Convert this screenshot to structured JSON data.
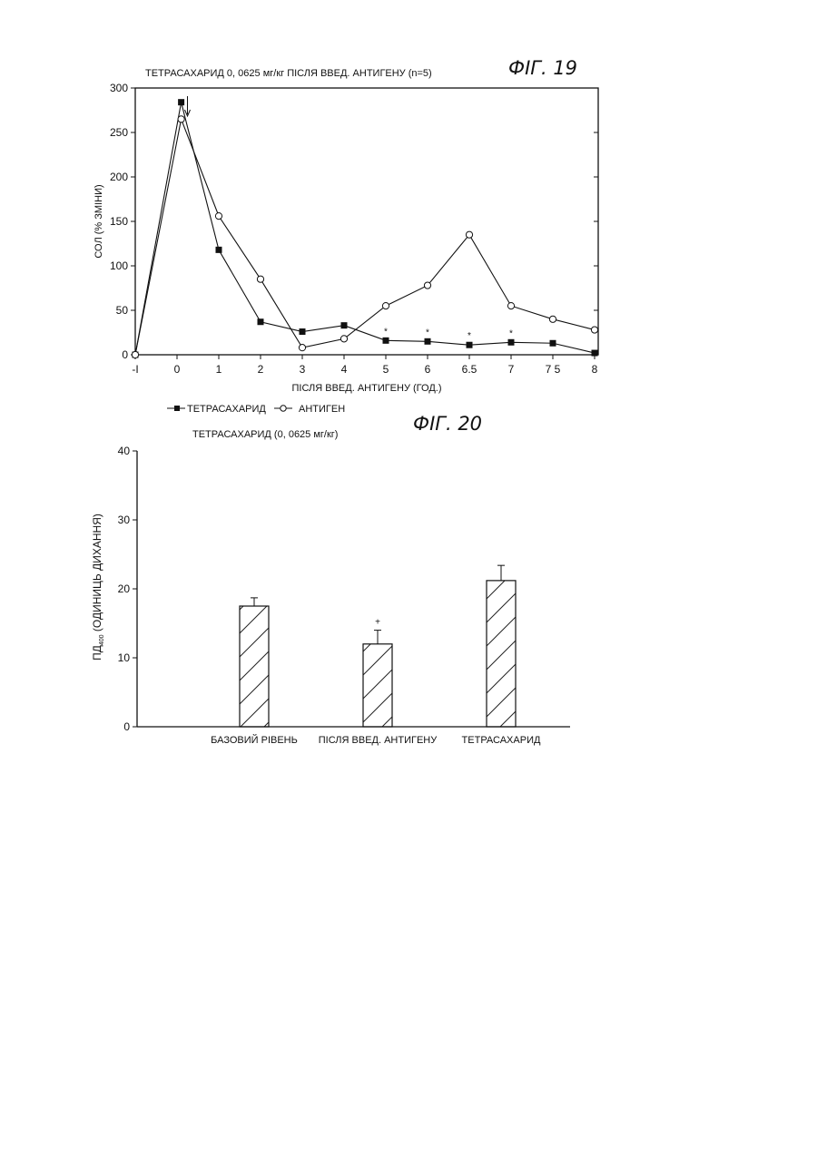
{
  "figures": [
    {
      "fig_label": "ФІГ. 19",
      "chart_data": {
        "type": "line",
        "title": "ТЕТРАСАХАРИД 0, 0625 мг/кг ПІСЛЯ ВВЕД. АНТИГЕНУ (n=5)",
        "xlabel": "ПІСЛЯ ВВЕД. АНТИГЕНУ (ГОД.)",
        "ylabel": "СОЛ (% ЗМІНИ)",
        "xlim": [
          -1,
          8
        ],
        "ylim": [
          0,
          300
        ],
        "x_tick_labels": [
          "-I",
          "0",
          "1",
          "2",
          "3",
          "4",
          "5",
          "6",
          "6.5",
          "7",
          "7 5",
          "8"
        ],
        "y_tick_labels": [
          "0",
          "50",
          "100",
          "150",
          "200",
          "250",
          "300"
        ],
        "y_ticks": [
          0,
          50,
          100,
          150,
          200,
          250,
          300
        ],
        "legend_placement": "bottom-left",
        "significance_marker": "*",
        "significant_points": [
          5,
          6,
          6.5,
          7
        ],
        "arrow_at_x": 0.25,
        "series": [
          {
            "name": "ТЕТРАСАХАРИД",
            "marker": "filled-square",
            "x": [
              -1,
              0.1,
              1,
              2,
              3,
              4,
              5,
              6,
              6.5,
              7,
              7.5,
              8
            ],
            "y": [
              0,
              284,
              118,
              37,
              26,
              33,
              16,
              15,
              11,
              14,
              13,
              2
            ]
          },
          {
            "name": "АНТИГЕН",
            "marker": "open-circle",
            "x": [
              -1,
              0.1,
              1,
              2,
              3,
              4,
              5,
              6,
              6.5,
              7,
              7.5,
              8
            ],
            "y": [
              0,
              265,
              156,
              85,
              8,
              18,
              55,
              78,
              135,
              55,
              40,
              28
            ]
          }
        ]
      }
    },
    {
      "fig_label": "ФІГ. 20",
      "chart_data": {
        "type": "bar",
        "title": "ТЕТРАСАХАРИД (0, 0625 мг/кг)",
        "ylabel_main": "ПД",
        "ylabel_sub": "400",
        "ylabel_rest": " (ОДИНИЦЬ ДИХАННЯ)",
        "ylim": [
          0,
          40
        ],
        "y_ticks": [
          0,
          10,
          20,
          30,
          40
        ],
        "y_tick_labels": [
          "0",
          "10",
          "20",
          "30",
          "40"
        ],
        "categories": [
          "БАЗОВИЙ РІВЕНЬ",
          "ПІСЛЯ ВВЕД. АНТИГЕНУ",
          "ТЕТРАСАХАРИД"
        ],
        "values": [
          17.5,
          12,
          21.2
        ],
        "errors": [
          1.2,
          2.0,
          2.2
        ],
        "annotations": [
          "",
          "+",
          ""
        ],
        "bar_pattern": "diagonal-hatch"
      }
    }
  ]
}
